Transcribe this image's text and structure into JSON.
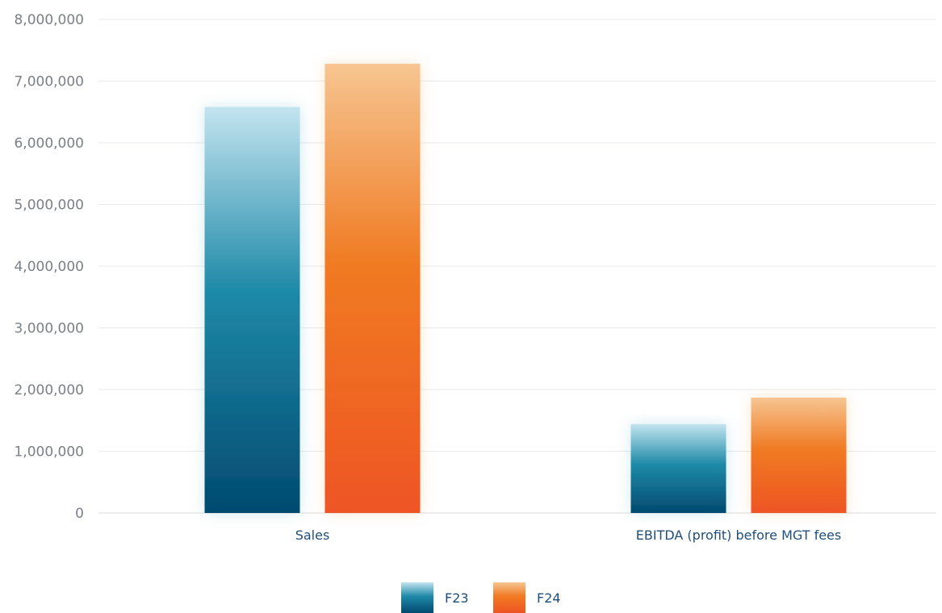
{
  "chart_data": {
    "type": "bar",
    "title": "",
    "xlabel": "",
    "ylabel": "",
    "categories": [
      "Sales",
      "EBITDA (profit) before MGT fees"
    ],
    "series": [
      {
        "name": "F23",
        "values": [
          6580000,
          1440000
        ],
        "color_top": "#c3e4ef",
        "color_mid": "#1f8aa9",
        "color_bottom": "#024a70"
      },
      {
        "name": "F24",
        "values": [
          7280000,
          1870000
        ],
        "color_top": "#f6c591",
        "color_mid": "#f07a22",
        "color_bottom": "#ee5525"
      }
    ],
    "ylim": [
      0,
      8000000
    ],
    "yticks": [
      0,
      1000000,
      2000000,
      3000000,
      4000000,
      5000000,
      6000000,
      7000000,
      8000000
    ],
    "ytick_labels": [
      "0",
      "1,000,000",
      "2,000,000",
      "3,000,000",
      "4,000,000",
      "5,000,000",
      "6,000,000",
      "7,000,000",
      "8,000,000"
    ],
    "grid": true,
    "legend_position": "bottom-center"
  }
}
